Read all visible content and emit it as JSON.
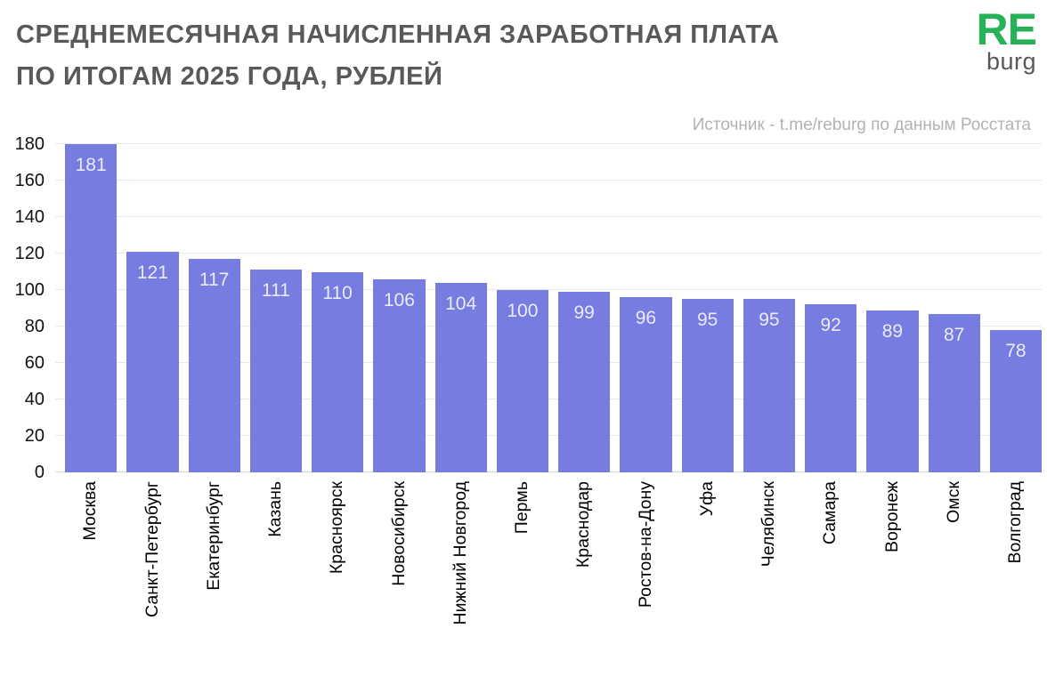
{
  "header": {
    "title_line1": "СРЕДНЕМЕСЯЧНАЯ НАЧИСЛЕННАЯ ЗАРАБОТНАЯ ПЛАТА",
    "title_line2": "ПО ИТОГАМ 2025 ГОДА, РУБЛЕЙ",
    "source": "Источник - t.me/reburg по данным Росстата",
    "logo": {
      "top": "RE",
      "bottom": "burg",
      "accent_color": "#27b259"
    }
  },
  "chart_data": {
    "type": "bar",
    "title": "СРЕДНЕМЕСЯЧНАЯ НАЧИСЛЕННАЯ ЗАРАБОТНАЯ ПЛАТА ПО ИТОГАМ 2025 ГОДА, РУБЛЕЙ",
    "categories": [
      "Москва",
      "Санкт-Петербург",
      "Екатеринбург",
      "Казань",
      "Красноярск",
      "Новосибирск",
      "Нижний Новгород",
      "Пермь",
      "Краснодар",
      "Ростов-на-Дону",
      "Уфа",
      "Челябинск",
      "Самара",
      "Воронеж",
      "Омск",
      "Волгоград"
    ],
    "values": [
      181,
      121,
      117,
      111,
      110,
      106,
      104,
      100,
      99,
      96,
      95,
      95,
      92,
      89,
      87,
      78
    ],
    "xlabel": "",
    "ylabel": "",
    "ylim": [
      0,
      180
    ],
    "ytick_step": 20,
    "yticks": [
      0,
      20,
      40,
      60,
      80,
      100,
      120,
      140,
      160,
      180
    ],
    "grid": true,
    "legend": false,
    "bar_color": "#777ce0",
    "value_label_color": "#e9ebfa",
    "value_labels_inside": true,
    "x_labels_rotation": 90
  }
}
